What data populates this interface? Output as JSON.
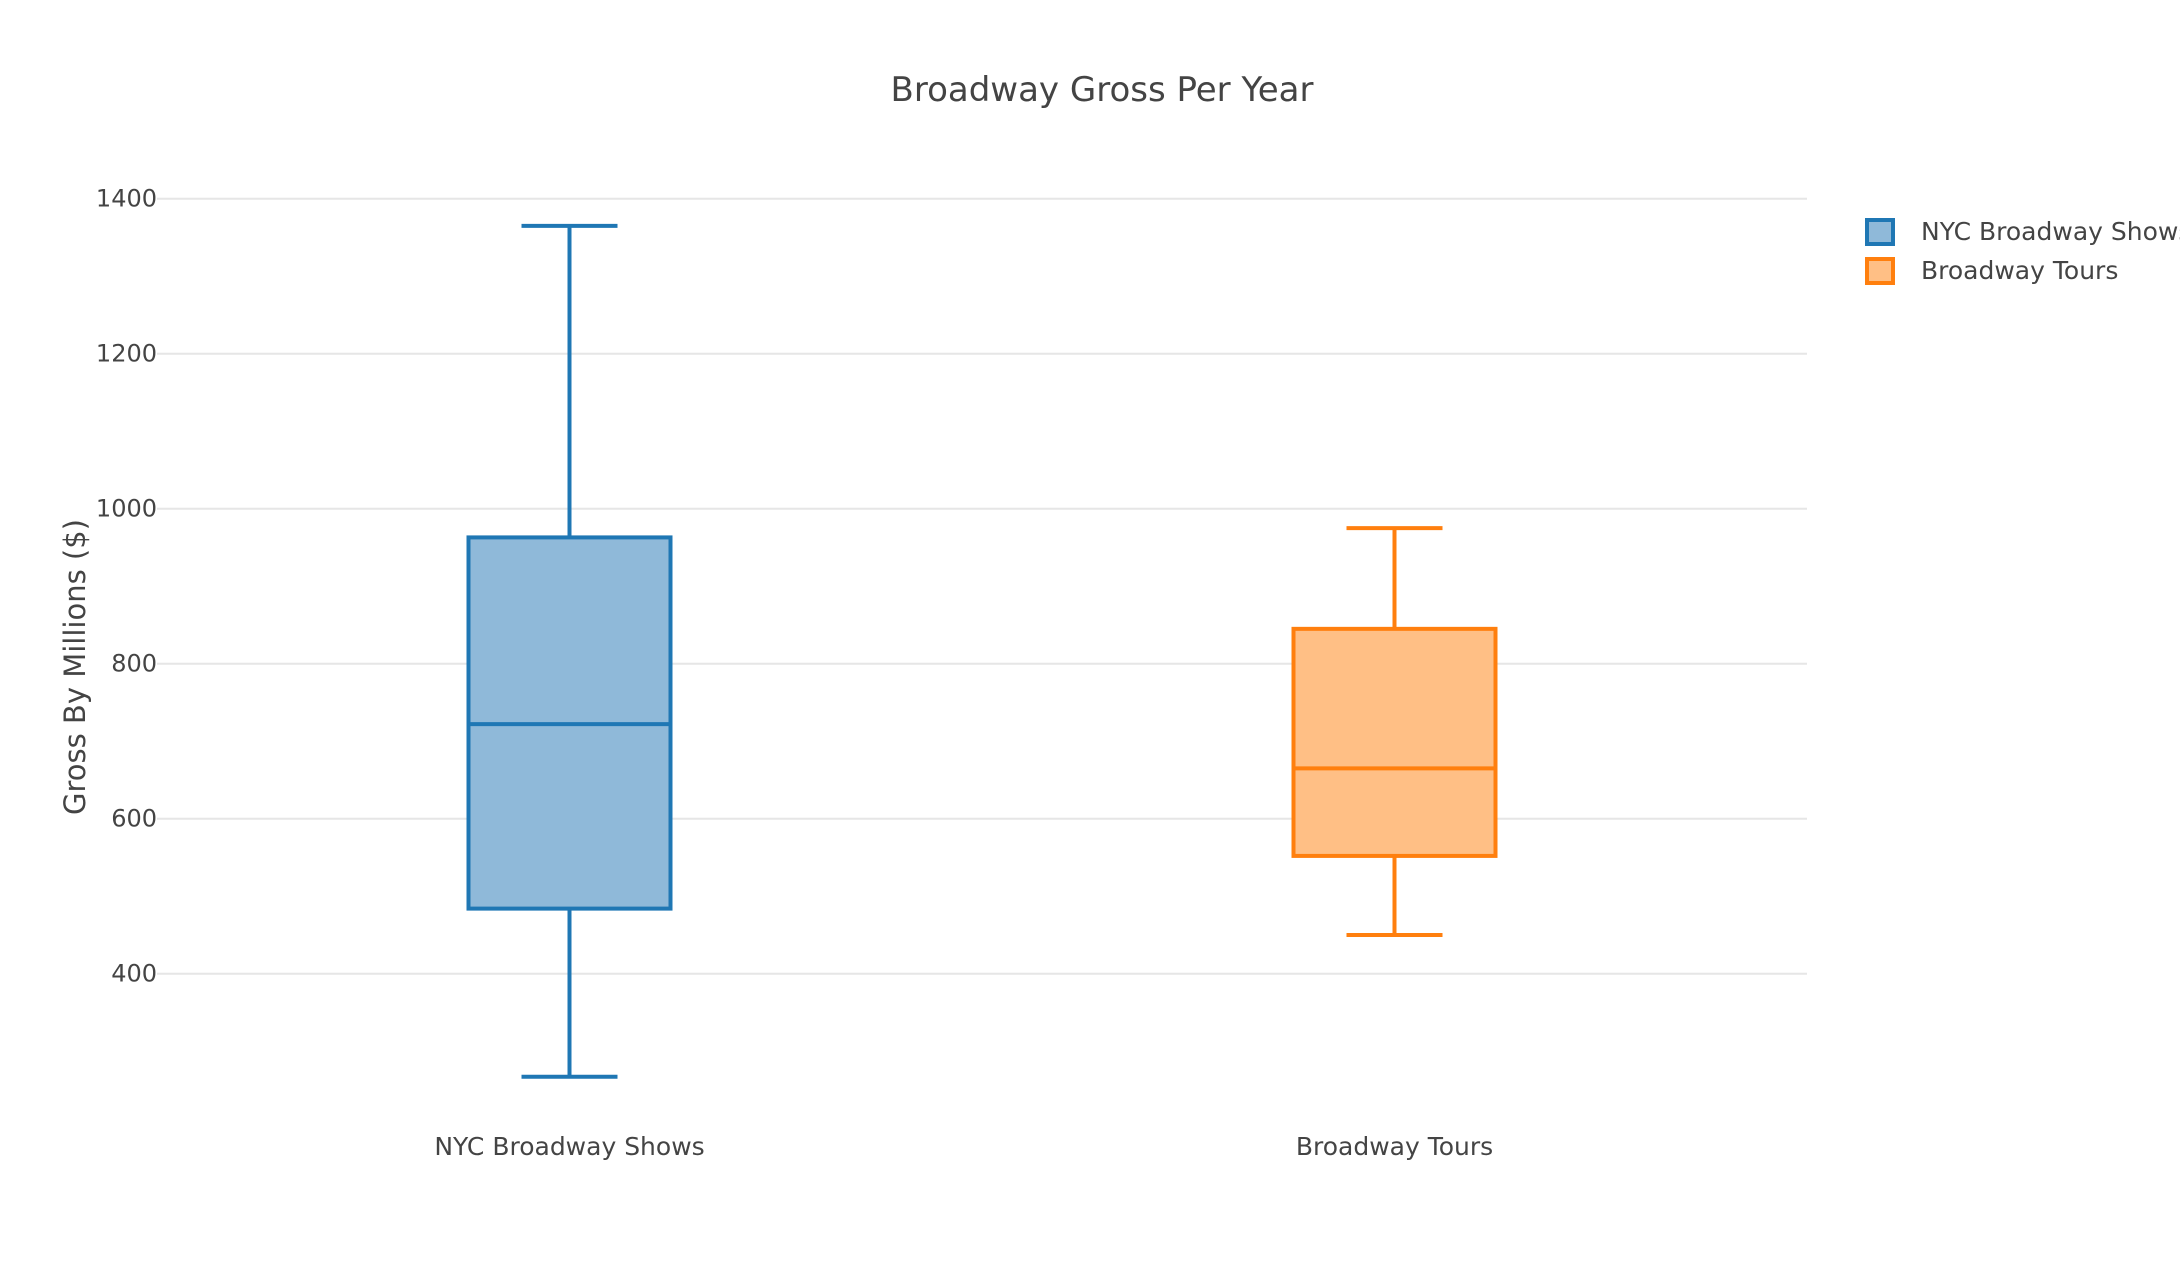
{
  "chart_data": {
    "type": "box",
    "title": "Broadway Gross Per Year",
    "xlabel": "",
    "ylabel": "Gross By Millions ($)",
    "ylim": [
      228,
      1450
    ],
    "yticks": [
      400,
      600,
      800,
      1000,
      1200,
      1400
    ],
    "grid": true,
    "legend_position": "top-right",
    "categories": [
      "NYC Broadway Shows",
      "Broadway Tours"
    ],
    "series": [
      {
        "name": "NYC Broadway Shows",
        "category": "NYC Broadway Shows",
        "color": "#1f77b4",
        "fill": "#8fb9d9",
        "min": 267,
        "q1": 484,
        "median": 722,
        "q3": 963,
        "max": 1365
      },
      {
        "name": "Broadway Tours",
        "category": "Broadway Tours",
        "color": "#ff7f0e",
        "fill": "#ffbf85",
        "min": 450,
        "q1": 552,
        "median": 665,
        "q3": 845,
        "max": 975
      }
    ]
  }
}
